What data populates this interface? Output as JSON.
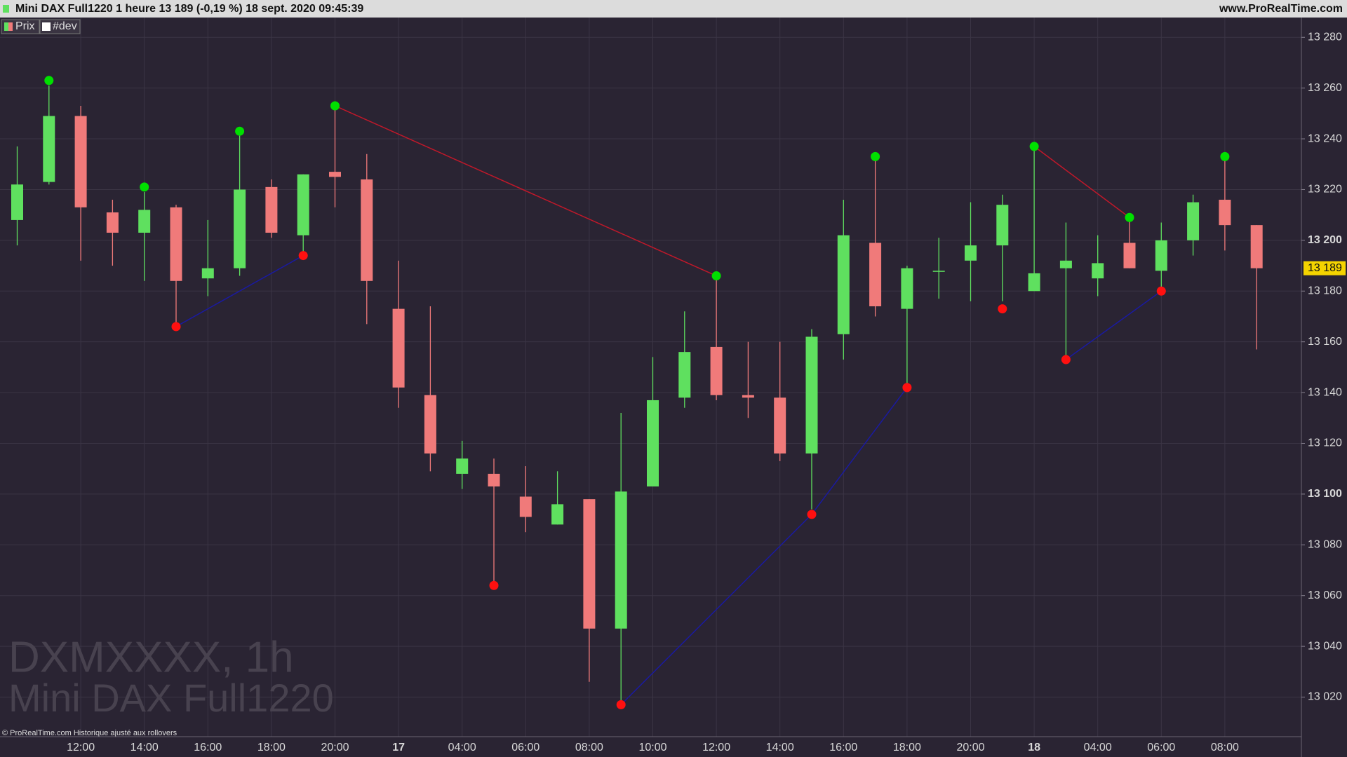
{
  "chart_data": {
    "type": "candlestick",
    "title": "Mini DAX Full1220 1 heure 13 189 (-0,19 %) 18 sept. 2020 09:45:39",
    "source": "www.ProRealTime.com",
    "legend": [
      "Prix",
      "#dev"
    ],
    "watermark": [
      "DXMXXXX, 1h",
      "Mini DAX Full1220"
    ],
    "footer": "© ProRealTime.com Historique ajusté aux rollovers",
    "categories": [
      null,
      null,
      "12:00",
      null,
      "14:00",
      null,
      "16:00",
      null,
      "18:00",
      null,
      "20:00",
      null,
      "17",
      null,
      "04:00",
      null,
      "06:00",
      null,
      "08:00",
      null,
      "10:00",
      null,
      "12:00",
      null,
      "14:00",
      null,
      "16:00",
      null,
      "18:00",
      null,
      "20:00",
      null,
      "18",
      null,
      "04:00",
      null,
      "06:00",
      null,
      "08:00",
      null
    ],
    "open": [
      13208,
      13223,
      13249,
      13211,
      13203,
      13213,
      13185,
      13189,
      13221,
      13202,
      13227,
      13224,
      13173,
      13139,
      13108,
      13108,
      13099,
      13088,
      13098,
      13047,
      13103,
      13138,
      13158,
      13139,
      13138,
      13116,
      13163,
      13199,
      13173,
      13188,
      13192,
      13198,
      13180,
      13189,
      13185,
      13199,
      13188,
      13200,
      13216,
      13206
    ],
    "high": [
      13237,
      13261,
      13253,
      13216,
      13219,
      13214,
      13208,
      13244,
      13224,
      13226,
      13253,
      13234,
      13192,
      13174,
      13121,
      13114,
      13111,
      13109,
      13098,
      13132,
      13154,
      13172,
      13186,
      13160,
      13160,
      13165,
      13216,
      13233,
      13190,
      13201,
      13215,
      13218,
      13237,
      13207,
      13202,
      13209,
      13207,
      13218,
      13233,
      13206
    ],
    "low": [
      13198,
      13222,
      13192,
      13190,
      13184,
      13167,
      13178,
      13186,
      13201,
      13194,
      13213,
      13167,
      13134,
      13109,
      13102,
      13064,
      13085,
      13088,
      13026,
      13017,
      13103,
      13134,
      13137,
      13130,
      13113,
      13094,
      13153,
      13170,
      13142,
      13177,
      13176,
      13176,
      13180,
      13153,
      13178,
      13189,
      13180,
      13194,
      13196,
      13157
    ],
    "close": [
      13222,
      13249,
      13213,
      13203,
      13212,
      13184,
      13189,
      13220,
      13203,
      13226,
      13225,
      13184,
      13142,
      13116,
      13114,
      13103,
      13091,
      13096,
      13047,
      13101,
      13137,
      13156,
      13139,
      13138,
      13116,
      13162,
      13202,
      13174,
      13189,
      13188,
      13198,
      13214,
      13187,
      13192,
      13191,
      13189,
      13200,
      13215,
      13206,
      13189
    ],
    "up_color": "#5fe05f",
    "down_color": "#f07a7a",
    "high_dots": {
      "color": "#00e000",
      "values": [
        null,
        13263,
        null,
        null,
        13221,
        null,
        null,
        13243,
        null,
        null,
        13253,
        null,
        null,
        null,
        null,
        null,
        null,
        null,
        null,
        null,
        null,
        null,
        13186,
        null,
        null,
        null,
        null,
        13233,
        null,
        null,
        null,
        null,
        13237,
        null,
        null,
        13209,
        null,
        null,
        13233,
        null
      ]
    },
    "low_dots": {
      "color": "#ff1010",
      "values": [
        null,
        null,
        null,
        null,
        null,
        13166,
        null,
        null,
        null,
        13194,
        null,
        null,
        null,
        null,
        null,
        13064,
        null,
        null,
        null,
        13017,
        null,
        null,
        null,
        null,
        null,
        13092,
        null,
        null,
        13142,
        null,
        null,
        13173,
        null,
        13153,
        null,
        null,
        13180,
        null,
        null,
        null
      ]
    },
    "high_links": {
      "color": "#c0182a",
      "pairs": [
        [
          10,
          22
        ],
        [
          32,
          35
        ]
      ]
    },
    "low_links": {
      "color": "#1a1aa0",
      "pairs": [
        [
          5,
          9
        ],
        [
          19,
          25
        ],
        [
          25,
          28
        ],
        [
          33,
          36
        ]
      ]
    },
    "last": {
      "value": 13189,
      "label": "13 189"
    },
    "ylim": [
      13004.4,
      13287.8
    ],
    "yticks": [
      {
        "value": 13020,
        "label": "13 020"
      },
      {
        "value": 13040,
        "label": "13 040"
      },
      {
        "value": 13060,
        "label": "13 060"
      },
      {
        "value": 13080,
        "label": "13 080"
      },
      {
        "value": 13100,
        "label": "13 100"
      },
      {
        "value": 13120,
        "label": "13 120"
      },
      {
        "value": 13140,
        "label": "13 140"
      },
      {
        "value": 13160,
        "label": "13 160"
      },
      {
        "value": 13180,
        "label": "13 180"
      },
      {
        "value": 13200,
        "label": "13 200"
      },
      {
        "value": 13220,
        "label": "13 220"
      },
      {
        "value": 13240,
        "label": "13 240"
      },
      {
        "value": 13260,
        "label": "13 260"
      },
      {
        "value": 13280,
        "label": "13 280"
      }
    ],
    "grid": true
  }
}
